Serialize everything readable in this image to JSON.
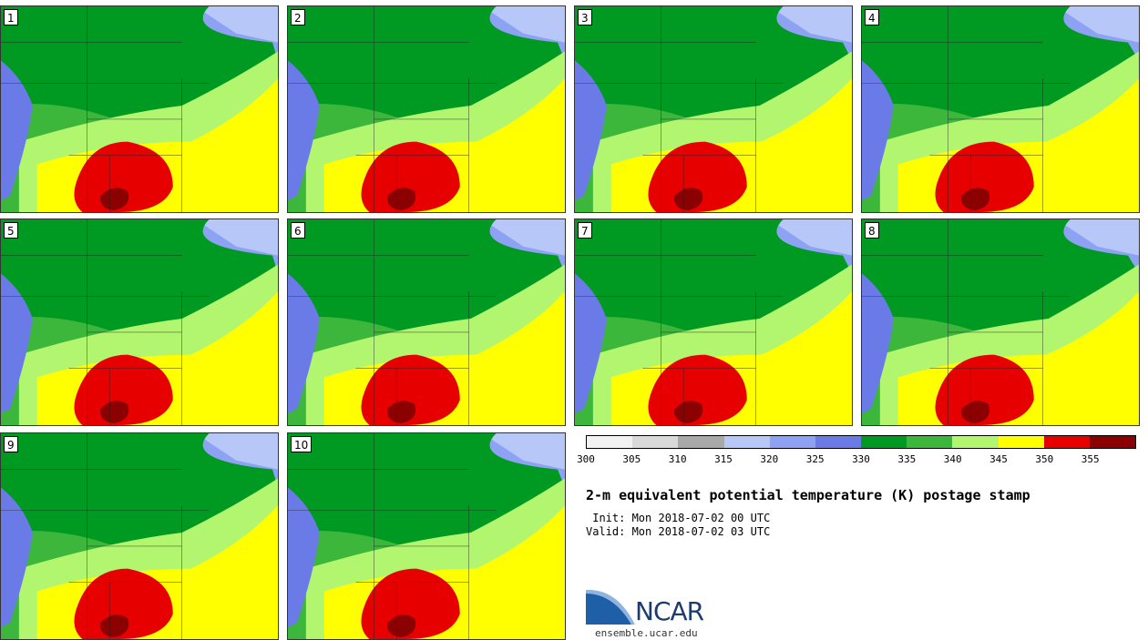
{
  "panels": [
    {
      "label": "1"
    },
    {
      "label": "2"
    },
    {
      "label": "3"
    },
    {
      "label": "4"
    },
    {
      "label": "5"
    },
    {
      "label": "6"
    },
    {
      "label": "7"
    },
    {
      "label": "8"
    },
    {
      "label": "9"
    },
    {
      "label": "10"
    }
  ],
  "colorbar": {
    "colors": [
      "#f2f2f2",
      "#d9d9d9",
      "#a9a9a9",
      "#b7c7f7",
      "#8ea2f3",
      "#6a7be8",
      "#009a22",
      "#3cb73c",
      "#b2f66f",
      "#ffff00",
      "#e60000",
      "#8b0000"
    ],
    "ticks": [
      "300",
      "305",
      "310",
      "315",
      "320",
      "325",
      "330",
      "335",
      "340",
      "345",
      "350",
      "355"
    ]
  },
  "title": "2-m equivalent potential temperature (K) postage stamp",
  "init_text": " Init: Mon 2018-07-02 00 UTC",
  "valid_text": "Valid: Mon 2018-07-02 03 UTC",
  "logo": {
    "text": "NCAR",
    "site": "ensemble.ucar.edu"
  }
}
